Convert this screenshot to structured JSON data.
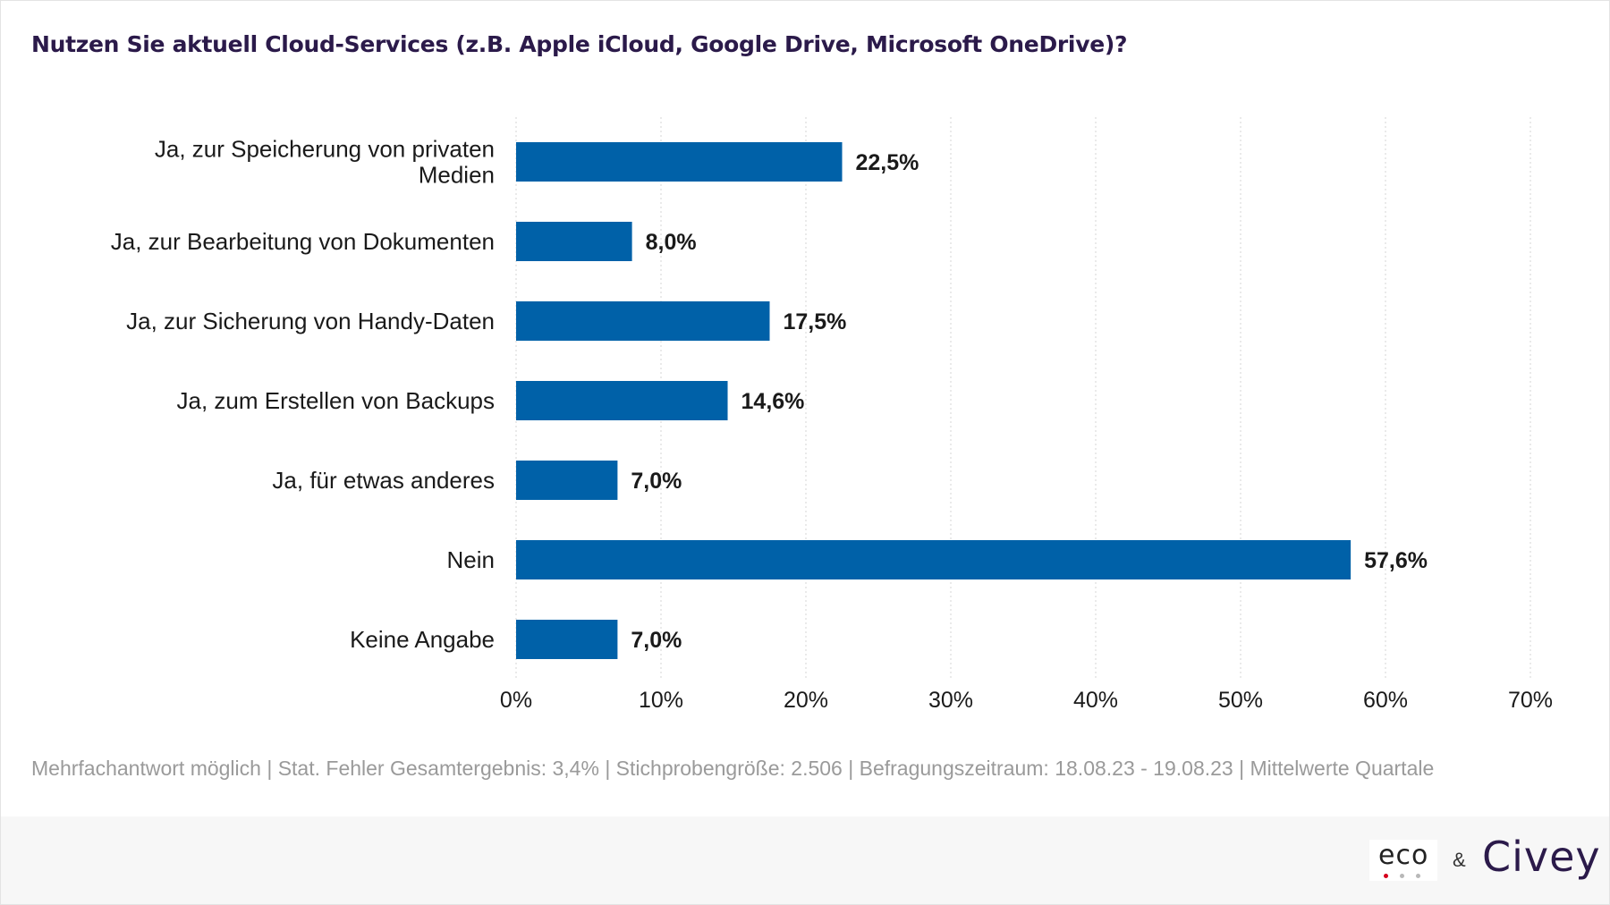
{
  "title": "Nutzen Sie aktuell Cloud-Services (z.B. Apple iCloud, Google Drive, Microsoft OneDrive)?",
  "footnote": "Mehrfachantwort möglich | Stat. Fehler Gesamtergebnis: 3,4% | Stichprobengröße: 2.506 | Befragungszeitraum: 18.08.23 - 19.08.23 | Mittelwerte Quartale",
  "logos": {
    "eco": "eco",
    "amp": "&",
    "civey": "Civey"
  },
  "colors": {
    "bar": "#0061a8",
    "grid": "#d6d6d6",
    "label": "#1a1a1a",
    "title": "#2b1a4a"
  },
  "chart_data": {
    "type": "bar",
    "orientation": "horizontal",
    "categories": [
      [
        "Ja, zur Speicherung von privaten",
        "Medien"
      ],
      [
        "Ja, zur Bearbeitung von Dokumenten"
      ],
      [
        "Ja, zur Sicherung von Handy-Daten"
      ],
      [
        "Ja, zum Erstellen von Backups"
      ],
      [
        "Ja, für etwas anderes"
      ],
      [
        "Nein"
      ],
      [
        "Keine Angabe"
      ]
    ],
    "values": [
      22.5,
      8.0,
      17.5,
      14.6,
      7.0,
      57.6,
      7.0
    ],
    "value_labels": [
      "22,5%",
      "8,0%",
      "17,5%",
      "14,6%",
      "7,0%",
      "57,6%",
      "7,0%"
    ],
    "xlim": [
      0,
      70
    ],
    "xticks": [
      0,
      10,
      20,
      30,
      40,
      50,
      60,
      70
    ],
    "xtick_labels": [
      "0%",
      "10%",
      "20%",
      "30%",
      "40%",
      "50%",
      "60%",
      "70%"
    ],
    "grid": "vertical dotted",
    "legend": "none"
  }
}
